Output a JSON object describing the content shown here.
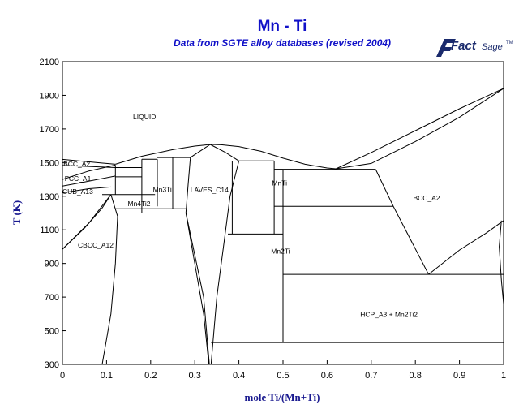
{
  "title": "Mn - Ti",
  "subtitle": "Data from SGTE alloy databases (revised 2004)",
  "logo": {
    "word1": "Fact",
    "word2": "Sage",
    "tm": "TM",
    "name": "factsage-logo"
  },
  "colors": {
    "title": "#1010c8",
    "axis_title": "#1a1a90",
    "logo": "#1a2a6c",
    "lines": "#000000"
  },
  "axes": {
    "xlabel": "mole Ti/(Mn+Ti)",
    "ylabel": "T (K)",
    "xlim": [
      0,
      1
    ],
    "ylim": [
      300,
      2100
    ],
    "xticks": [
      "0",
      "0.1",
      "0.2",
      "0.3",
      "0.4",
      "0.5",
      "0.6",
      "0.7",
      "0.8",
      "0.9",
      "1"
    ],
    "yticks": [
      "300",
      "500",
      "700",
      "900",
      "1100",
      "1300",
      "1500",
      "1700",
      "1900",
      "2100"
    ]
  },
  "phase_labels": [
    {
      "key": "liquid",
      "text": "LIQUID",
      "x": 0.16,
      "y": 1758
    },
    {
      "key": "bcc-a2-left",
      "text": "BCC_A2",
      "x": 0.002,
      "y": 1478
    },
    {
      "key": "fcc-a1",
      "text": "FCC_A1",
      "x": 0.005,
      "y": 1390
    },
    {
      "key": "cub-a13",
      "text": "CUB_A13",
      "x": 0.0,
      "y": 1313
    },
    {
      "key": "mn3ti",
      "text": "Mn3Ti",
      "x": 0.205,
      "y": 1325
    },
    {
      "key": "laves-c14",
      "text": "LAVES_C14",
      "x": 0.29,
      "y": 1323
    },
    {
      "key": "mnti",
      "text": "MnTi",
      "x": 0.475,
      "y": 1363
    },
    {
      "key": "mn4ti2",
      "text": "Mn4Ti2",
      "x": 0.148,
      "y": 1240
    },
    {
      "key": "bcc-a2-right",
      "text": "BCC_A2",
      "x": 0.795,
      "y": 1275
    },
    {
      "key": "cbcc-a12",
      "text": "CBCC_A12",
      "x": 0.035,
      "y": 995
    },
    {
      "key": "mn2ti",
      "text": "Mn2Ti",
      "x": 0.473,
      "y": 958
    },
    {
      "key": "hcp-mn2ti",
      "text": "HCP_A3 + Mn2Ti2",
      "x": 0.675,
      "y": 582
    }
  ],
  "phase_boundaries": [
    {
      "key": "liquidus-mn-left",
      "points": [
        [
          0,
          1519
        ],
        [
          0.12,
          1490
        ]
      ]
    },
    {
      "key": "liquidus-dome",
      "points": [
        [
          0.12,
          1490
        ],
        [
          0.18,
          1538
        ],
        [
          0.25,
          1577
        ],
        [
          0.3,
          1598
        ],
        [
          0.335,
          1608
        ],
        [
          0.36,
          1606
        ],
        [
          0.4,
          1595
        ],
        [
          0.45,
          1567
        ],
        [
          0.5,
          1526
        ],
        [
          0.55,
          1490
        ],
        [
          0.6,
          1468
        ],
        [
          0.62,
          1463
        ]
      ]
    },
    {
      "key": "liquidus-ti",
      "points": [
        [
          0.62,
          1463
        ],
        [
          0.7,
          1560
        ],
        [
          0.8,
          1690
        ],
        [
          0.9,
          1820
        ],
        [
          1,
          1941
        ]
      ]
    },
    {
      "key": "solidus-ti",
      "points": [
        [
          0.62,
          1463
        ],
        [
          0.7,
          1495
        ],
        [
          0.8,
          1625
        ],
        [
          0.9,
          1770
        ],
        [
          1,
          1941
        ]
      ]
    },
    {
      "key": "bcc-left-lower",
      "points": [
        [
          0,
          1483
        ],
        [
          0.12,
          1470
        ]
      ]
    },
    {
      "key": "bcc-fcc-left",
      "points": [
        [
          0,
          1400
        ],
        [
          0.06,
          1450
        ],
        [
          0.12,
          1485
        ]
      ]
    },
    {
      "key": "fcc-cub-left",
      "points": [
        [
          0,
          1360
        ],
        [
          0.05,
          1385
        ],
        [
          0.12,
          1420
        ]
      ]
    },
    {
      "key": "cub-left-lower",
      "points": [
        [
          0,
          1320
        ],
        [
          0.06,
          1345
        ],
        [
          0.11,
          1355
        ]
      ]
    },
    {
      "key": "eut-1470",
      "points": [
        [
          0.12,
          1470
        ],
        [
          0.18,
          1470
        ]
      ]
    },
    {
      "key": "eut-1415",
      "points": [
        [
          0.12,
          1415
        ],
        [
          0.18,
          1415
        ]
      ]
    },
    {
      "key": "eut-1310",
      "points": [
        [
          0.09,
          1310
        ],
        [
          0.21,
          1310
        ]
      ]
    },
    {
      "key": "cub-phase-boundary",
      "points": [
        [
          0.12,
          1485
        ],
        [
          0.12,
          1310
        ]
      ]
    },
    {
      "key": "cbcc-liq",
      "points": [
        [
          0,
          985
        ],
        [
          0.05,
          1110
        ],
        [
          0.09,
          1230
        ],
        [
          0.11,
          1310
        ]
      ]
    },
    {
      "key": "cbcc-solvus",
      "points": [
        [
          0,
          985
        ],
        [
          0.06,
          1140
        ],
        [
          0.11,
          1310
        ]
      ]
    },
    {
      "key": "cbcc-mn4ti2",
      "points": [
        [
          0.11,
          1310
        ],
        [
          0.125,
          1180
        ],
        [
          0.12,
          900
        ],
        [
          0.11,
          600
        ],
        [
          0.09,
          300
        ]
      ]
    },
    {
      "key": "mn4ti2-box-left",
      "points": [
        [
          0.18,
          1520
        ],
        [
          0.18,
          1200
        ]
      ]
    },
    {
      "key": "mn4ti2-box-top",
      "points": [
        [
          0.18,
          1520
        ],
        [
          0.215,
          1520
        ]
      ]
    },
    {
      "key": "mn4ti2-box-right",
      "points": [
        [
          0.215,
          1520
        ],
        [
          0.215,
          1240
        ]
      ]
    },
    {
      "key": "mn4ti2-box-bottom",
      "points": [
        [
          0.12,
          1225
        ],
        [
          0.28,
          1225
        ]
      ]
    },
    {
      "key": "mn4ti2-lower-line",
      "points": [
        [
          0.18,
          1200
        ],
        [
          0.28,
          1200
        ]
      ]
    },
    {
      "key": "mn3ti-box-left",
      "points": [
        [
          0.25,
          1530
        ],
        [
          0.25,
          1225
        ]
      ]
    },
    {
      "key": "mn3ti-top",
      "points": [
        [
          0.215,
          1530
        ],
        [
          0.29,
          1530
        ]
      ]
    },
    {
      "key": "laves-left",
      "points": [
        [
          0.29,
          1530
        ],
        [
          0.285,
          1370
        ],
        [
          0.28,
          1200
        ],
        [
          0.3,
          900
        ],
        [
          0.32,
          600
        ],
        [
          0.332,
          300
        ]
      ]
    },
    {
      "key": "laves-left-inner",
      "points": [
        [
          0.28,
          1200
        ],
        [
          0.32,
          700
        ],
        [
          0.333,
          300
        ]
      ]
    },
    {
      "key": "laves-top-left",
      "points": [
        [
          0.29,
          1530
        ],
        [
          0.335,
          1608
        ]
      ]
    },
    {
      "key": "laves-top-right",
      "points": [
        [
          0.335,
          1608
        ],
        [
          0.37,
          1560
        ],
        [
          0.4,
          1510
        ]
      ]
    },
    {
      "key": "laves-right",
      "points": [
        [
          0.4,
          1510
        ],
        [
          0.38,
          1300
        ],
        [
          0.365,
          1000
        ],
        [
          0.35,
          700
        ],
        [
          0.337,
          300
        ]
      ]
    },
    {
      "key": "mnti-box-top",
      "points": [
        [
          0.4,
          1510
        ],
        [
          0.48,
          1510
        ]
      ]
    },
    {
      "key": "mnti-box-left",
      "points": [
        [
          0.385,
          1510
        ],
        [
          0.385,
          1075
        ]
      ]
    },
    {
      "key": "mnti-box-right",
      "points": [
        [
          0.48,
          1510
        ],
        [
          0.48,
          1075
        ]
      ]
    },
    {
      "key": "mnti-box-bottom",
      "points": [
        [
          0.375,
          1075
        ],
        [
          0.5,
          1075
        ]
      ]
    },
    {
      "key": "mnti-right-upper",
      "points": [
        [
          0.48,
          1460
        ],
        [
          0.5,
          1460
        ]
      ]
    },
    {
      "key": "liq-right-top",
      "points": [
        [
          0.5,
          1460
        ],
        [
          0.71,
          1460
        ]
      ]
    },
    {
      "key": "mn2ti-left",
      "points": [
        [
          0.48,
          1240
        ],
        [
          0.5,
          1240
        ]
      ]
    },
    {
      "key": "mn2ti-vertical",
      "points": [
        [
          0.5,
          1460
        ],
        [
          0.5,
          430
        ]
      ]
    },
    {
      "key": "mn2ti-top",
      "points": [
        [
          0.5,
          1240
        ],
        [
          0.75,
          1240
        ]
      ]
    },
    {
      "key": "bcc-boundary-lower",
      "points": [
        [
          0.71,
          1460
        ],
        [
          0.75,
          1240
        ],
        [
          0.83,
          835
        ]
      ]
    },
    {
      "key": "eutectoid-830",
      "points": [
        [
          0.5,
          835
        ],
        [
          1,
          835
        ]
      ]
    },
    {
      "key": "hcp-bcc-right",
      "points": [
        [
          0.83,
          835
        ],
        [
          0.9,
          980
        ],
        [
          0.96,
          1080
        ],
        [
          1,
          1155
        ]
      ]
    },
    {
      "key": "hcp-solvus",
      "points": [
        [
          0.995,
          1155
        ],
        [
          0.99,
          1000
        ],
        [
          0.995,
          800
        ],
        [
          1,
          660
        ]
      ]
    },
    {
      "key": "bottom-430",
      "points": [
        [
          0.337,
          430
        ],
        [
          1,
          430
        ]
      ]
    }
  ]
}
